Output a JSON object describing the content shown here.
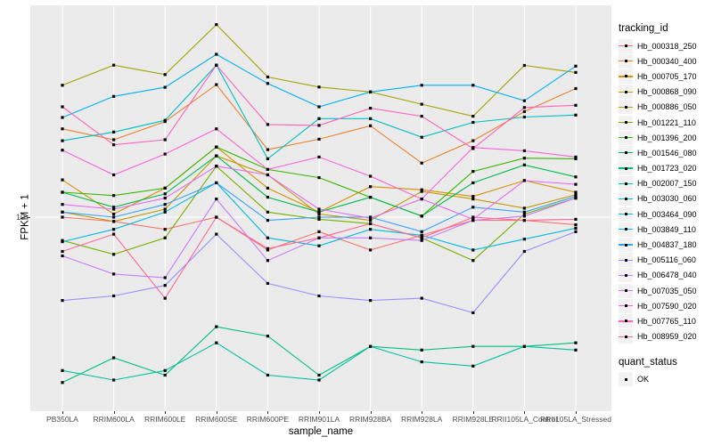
{
  "chart_data": {
    "type": "line",
    "title": "",
    "xlabel": "sample_name",
    "ylabel": "FPKM + 1",
    "y_axis": {
      "scale": "log10",
      "tick_values": [
        10
      ],
      "tick_labels": [
        "10"
      ],
      "approx_range": [
        1.8,
        70
      ]
    },
    "grid": "major-only",
    "legend": {
      "title": "tracking_id",
      "position": "right"
    },
    "legend2": {
      "title": "quant_status",
      "items": [
        {
          "label": "OK",
          "marker": "black-square"
        }
      ]
    },
    "colors": {
      "panel_bg": "#EBEBEB",
      "grid": "#FFFFFF",
      "point": "#000000",
      "axis_text": "#4D4D4D",
      "legend_key_bg": "#F2F2F2"
    },
    "categories": [
      "PB350LA",
      "RRIM600LA",
      "RRIM600LE",
      "RRIM600SE",
      "RRIM600PE",
      "RRIM901LA",
      "RRIM928BA",
      "RRIM928LA",
      "RRIM928LE",
      "RRII105LA_Control",
      "RRII105LA_Stressed"
    ],
    "series": [
      {
        "name": "Hb_000318_250",
        "color": "#F8766D",
        "values": [
          10.0,
          9.6,
          8.9,
          10.0,
          7.3,
          8.7,
          7.3,
          8.4,
          9.7,
          9.7,
          9.3
        ]
      },
      {
        "name": "Hb_000340_400",
        "color": "#EA8331",
        "values": [
          23.3,
          21.0,
          25.0,
          35.6,
          19.1,
          21.1,
          24.0,
          16.8,
          20.8,
          27.5,
          34.3
        ]
      },
      {
        "name": "Hb_000705_170",
        "color": "#D89000",
        "values": [
          14.3,
          10.3,
          13.2,
          19.6,
          13.2,
          10.5,
          13.4,
          13.0,
          12.2,
          14.2,
          12.7
        ]
      },
      {
        "name": "Hb_000868_090",
        "color": "#C09B00",
        "values": [
          10.5,
          9.6,
          10.8,
          18.0,
          15.0,
          10.3,
          9.7,
          12.8,
          11.9,
          10.9,
          12.4
        ]
      },
      {
        "name": "Hb_000886_050",
        "color": "#A3A500",
        "values": [
          35.4,
          42.9,
          39.2,
          63.3,
          38.3,
          34.8,
          33.2,
          29.5,
          26.3,
          42.8,
          40.0
        ]
      },
      {
        "name": "Hb_001221_110",
        "color": "#7CAE00",
        "values": [
          8.0,
          7.0,
          8.2,
          16.3,
          10.5,
          9.8,
          9.4,
          8.2,
          6.6,
          10.3,
          12.0
        ]
      },
      {
        "name": "Hb_001396_200",
        "color": "#39B600",
        "values": [
          12.7,
          12.3,
          13.2,
          19.6,
          15.8,
          14.6,
          12.1,
          10.1,
          15.5,
          17.6,
          17.5
        ]
      },
      {
        "name": "Hb_001546_080",
        "color": "#00BB4E",
        "values": [
          12.7,
          11.0,
          12.5,
          18.0,
          12.1,
          10.5,
          12.1,
          10.1,
          13.9,
          16.5,
          14.7
        ]
      },
      {
        "name": "Hb_001723_020",
        "color": "#00BF7D",
        "values": [
          2.05,
          2.6,
          2.2,
          3.5,
          3.2,
          2.2,
          2.9,
          2.8,
          2.9,
          2.9,
          3.0
        ]
      },
      {
        "name": "Hb_002007_150",
        "color": "#00C1A3",
        "values": [
          2.3,
          2.1,
          2.3,
          3.0,
          2.2,
          2.1,
          2.9,
          2.5,
          2.4,
          2.9,
          2.8
        ]
      },
      {
        "name": "Hb_003030_060",
        "color": "#00BFC4",
        "values": [
          20.8,
          22.6,
          25.3,
          42.9,
          17.5,
          25.7,
          25.7,
          21.5,
          24.8,
          26.1,
          26.6
        ]
      },
      {
        "name": "Hb_003464_090",
        "color": "#00BAE0",
        "values": [
          7.9,
          8.9,
          10.5,
          13.9,
          8.2,
          7.6,
          8.9,
          8.4,
          7.3,
          8.1,
          9.0
        ]
      },
      {
        "name": "Hb_003849_110",
        "color": "#00B0F6",
        "values": [
          26.0,
          31.8,
          34.7,
          47.6,
          36.0,
          28.8,
          33.2,
          35.4,
          35.4,
          30.5,
          42.5
        ]
      },
      {
        "name": "Hb_004837_180",
        "color": "#35A2FF",
        "values": [
          10.5,
          10.0,
          11.3,
          13.9,
          9.7,
          10.0,
          10.0,
          8.7,
          11.0,
          10.5,
          12.2
        ]
      },
      {
        "name": "Hb_005116_060",
        "color": "#9590FF",
        "values": [
          4.5,
          4.7,
          5.2,
          8.5,
          5.3,
          4.7,
          4.5,
          4.6,
          4.0,
          7.2,
          8.7
        ]
      },
      {
        "name": "Hb_006478_040",
        "color": "#C77CFF",
        "values": [
          6.9,
          5.8,
          5.6,
          11.9,
          6.6,
          8.2,
          8.2,
          8.0,
          9.7,
          10.1,
          12.0
        ]
      },
      {
        "name": "Hb_007035_050",
        "color": "#E76BF3",
        "values": [
          11.3,
          10.8,
          12.0,
          16.3,
          15.0,
          10.8,
          9.9,
          11.9,
          9.8,
          14.2,
          13.7
        ]
      },
      {
        "name": "Hb_007590_020",
        "color": "#FA62DB",
        "values": [
          19.0,
          15.0,
          18.3,
          23.3,
          15.8,
          17.8,
          14.8,
          11.9,
          19.5,
          18.9,
          17.8
        ]
      },
      {
        "name": "Hb_007765_110",
        "color": "#FF62BC",
        "values": [
          28.8,
          20.0,
          21.0,
          42.9,
          24.3,
          24.1,
          28.4,
          26.3,
          19.3,
          28.6,
          29.2
        ]
      },
      {
        "name": "Hb_008959_020",
        "color": "#FF6A98",
        "values": [
          7.2,
          8.5,
          4.6,
          10.0,
          7.4,
          8.2,
          9.4,
          8.2,
          10.0,
          9.7,
          9.8
        ]
      }
    ]
  }
}
